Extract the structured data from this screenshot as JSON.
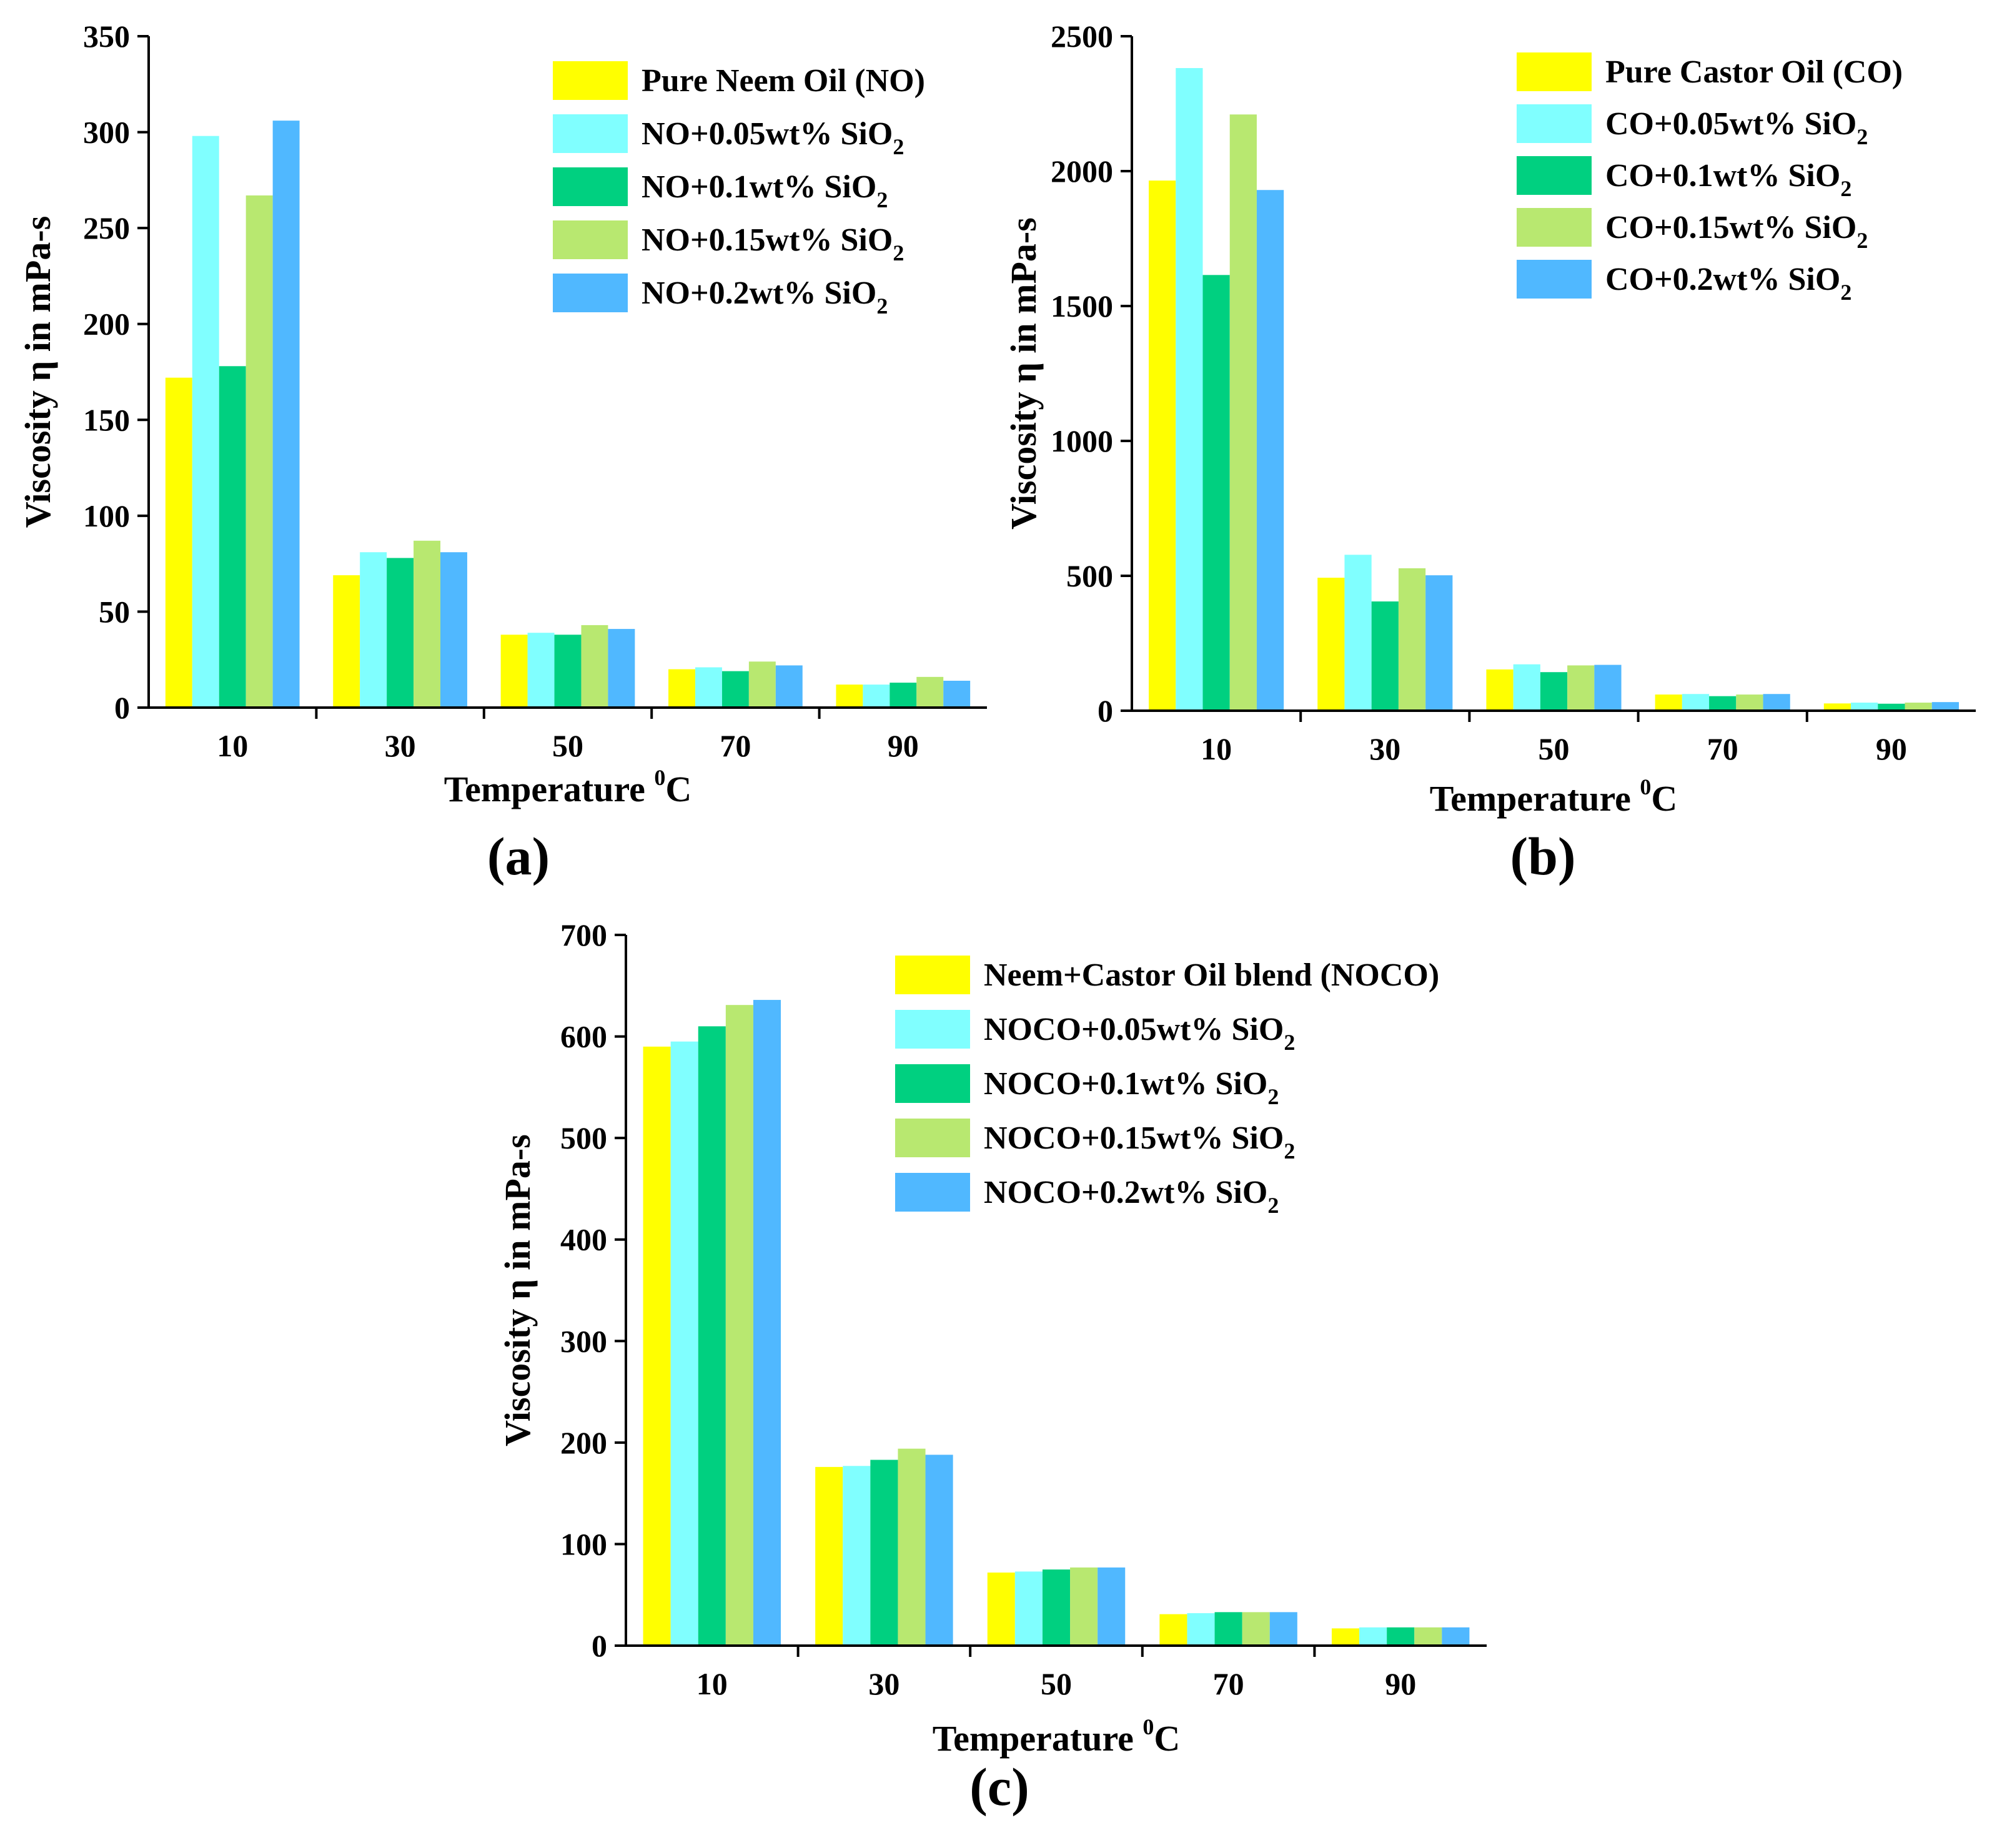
{
  "figure": {
    "colors": [
      "#FFFF00",
      "#80FFFF",
      "#00D080",
      "#B8E870",
      "#50B8FF"
    ]
  },
  "chart_data": [
    {
      "type": "bar",
      "panel": "(a)",
      "xlabel": "Temperature ⁰C",
      "xlabel_main": "Temperature ",
      "xlabel_sup": "0",
      "xlabel_tail": "C",
      "ylabel": "Viscosity η in mPa-s",
      "ylim": [
        0,
        350
      ],
      "yticks": [
        0,
        50,
        100,
        150,
        200,
        250,
        300,
        350
      ],
      "categories": [
        "10",
        "30",
        "50",
        "70",
        "90"
      ],
      "legend_position": "top-right",
      "series": [
        {
          "name": "Pure Neem Oil (NO)",
          "main": "Pure Neem Oil (NO)",
          "sub": "",
          "values": [
            172,
            69,
            38,
            20,
            12
          ]
        },
        {
          "name": "NO+0.05wt% SiO2",
          "main": "NO+0.05wt% SiO",
          "sub": "2",
          "values": [
            298,
            81,
            39,
            21,
            12
          ]
        },
        {
          "name": "NO+0.1wt% SiO2",
          "main": "NO+0.1wt% SiO",
          "sub": "2",
          "values": [
            178,
            78,
            38,
            19,
            13
          ]
        },
        {
          "name": "NO+0.15wt% SiO2",
          "main": "NO+0.15wt% SiO",
          "sub": "2",
          "values": [
            267,
            87,
            43,
            24,
            16
          ]
        },
        {
          "name": "NO+0.2wt% SiO2",
          "main": "NO+0.2wt% SiO",
          "sub": "2",
          "values": [
            306,
            81,
            41,
            22,
            14
          ]
        }
      ]
    },
    {
      "type": "bar",
      "panel": "(b)",
      "xlabel": "Temperature ⁰C",
      "xlabel_main": "Temperature ",
      "xlabel_sup": "0",
      "xlabel_tail": "C",
      "ylabel": "Viscosity η in mPa-s",
      "ylim": [
        0,
        2500
      ],
      "yticks": [
        0,
        500,
        1000,
        1500,
        2000,
        2500
      ],
      "categories": [
        "10",
        "30",
        "50",
        "70",
        "90"
      ],
      "legend_position": "top-right",
      "series": [
        {
          "name": "Pure Castor Oil (CO)",
          "main": "Pure Castor Oil (CO)",
          "sub": "",
          "values": [
            1965,
            493,
            153,
            60,
            27
          ]
        },
        {
          "name": "CO+0.05wt% SiO2",
          "main": "CO+0.05wt% SiO",
          "sub": "2",
          "values": [
            2382,
            578,
            172,
            62,
            30
          ]
        },
        {
          "name": "CO+0.1wt% SiO2",
          "main": "CO+0.1wt% SiO",
          "sub": "2",
          "values": [
            1615,
            405,
            143,
            54,
            26
          ]
        },
        {
          "name": "CO+0.15wt% SiO2",
          "main": "CO+0.15wt% SiO",
          "sub": "2",
          "values": [
            2210,
            528,
            168,
            60,
            30
          ]
        },
        {
          "name": "CO+0.2wt% SiO2",
          "main": "CO+0.2wt% SiO",
          "sub": "2",
          "values": [
            1930,
            502,
            170,
            62,
            32
          ]
        }
      ]
    },
    {
      "type": "bar",
      "panel": "(c)",
      "xlabel": "Temperature ⁰C",
      "xlabel_main": "Temperature ",
      "xlabel_sup": "0",
      "xlabel_tail": "C",
      "ylabel": "Viscosity η in mPa-s",
      "ylim": [
        0,
        700
      ],
      "yticks": [
        0,
        100,
        200,
        300,
        400,
        500,
        600,
        700
      ],
      "categories": [
        "10",
        "30",
        "50",
        "70",
        "90"
      ],
      "legend_position": "top-right",
      "series": [
        {
          "name": "Neem+Castor Oil blend (NOCO)",
          "main": "Neem+Castor Oil blend (NOCO)",
          "sub": "",
          "values": [
            590,
            176,
            72,
            31,
            17
          ]
        },
        {
          "name": "NOCO+0.05wt% SiO2",
          "main": "NOCO+0.05wt% SiO",
          "sub": "2",
          "values": [
            595,
            177,
            73,
            32,
            18
          ]
        },
        {
          "name": "NOCO+0.1wt% SiO2",
          "main": "NOCO+0.1wt% SiO",
          "sub": "2",
          "values": [
            610,
            183,
            75,
            33,
            18
          ]
        },
        {
          "name": "NOCO+0.15wt% SiO2",
          "main": "NOCO+0.15wt% SiO",
          "sub": "2",
          "values": [
            631,
            194,
            77,
            33,
            18
          ]
        },
        {
          "name": "NOCO+0.2wt% SiO2",
          "main": "NOCO+0.2wt% SiO",
          "sub": "2",
          "values": [
            636,
            188,
            77,
            33,
            18
          ]
        }
      ]
    }
  ]
}
